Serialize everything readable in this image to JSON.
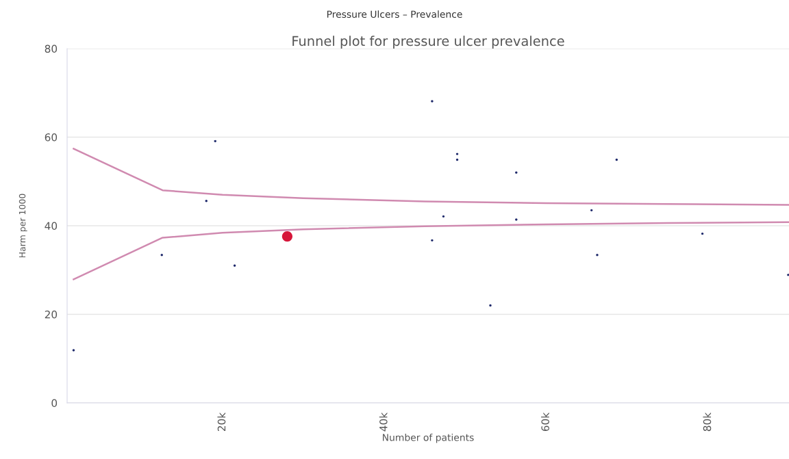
{
  "chart_data": {
    "type": "scatter",
    "title": "Pressure Ulcers – Prevalence",
    "subtitle": "Funnel plot for pressure ulcer prevalence",
    "xlabel": "Number of patients",
    "ylabel": "Harm per 1000",
    "xlim": [
      800,
      90000
    ],
    "ylim": [
      0,
      80
    ],
    "xticks": [
      {
        "value": 20000,
        "label": "20k"
      },
      {
        "value": 40000,
        "label": "40k"
      },
      {
        "value": 60000,
        "label": "60k"
      },
      {
        "value": 80000,
        "label": "80k"
      }
    ],
    "yticks": [
      0,
      20,
      40,
      60,
      80
    ],
    "grid": "y",
    "legend": false,
    "series": [
      {
        "type": "line",
        "color": "#d08ab0",
        "x": [
          1600,
          12600,
          20000,
          30000,
          45000,
          60000,
          75000,
          90000
        ],
        "values": [
          57.4,
          48.0,
          47.0,
          46.2,
          45.5,
          45.1,
          44.9,
          44.7
        ]
      },
      {
        "type": "line",
        "color": "#d08ab0",
        "x": [
          1600,
          12600,
          20000,
          30000,
          45000,
          60000,
          75000,
          90000
        ],
        "values": [
          27.9,
          37.3,
          38.4,
          39.2,
          39.9,
          40.3,
          40.6,
          40.8
        ]
      },
      {
        "marker": "circle",
        "color": "#1f2a6b",
        "x": [
          1600,
          12500,
          21500,
          19100,
          18000,
          45900,
          49000,
          49000,
          56300,
          68700,
          47300,
          56300,
          65600,
          45900,
          53100,
          66300,
          79300,
          89900
        ],
        "values": [
          11.9,
          33.4,
          31.0,
          59.1,
          45.6,
          68.1,
          56.2,
          54.9,
          52.0,
          54.9,
          42.1,
          41.4,
          43.5,
          36.7,
          22.0,
          33.4,
          38.2,
          28.9
        ]
      },
      {
        "marker": "circle",
        "color": "#d6163a",
        "x": [
          28000
        ],
        "values": [
          37.6
        ]
      }
    ]
  }
}
